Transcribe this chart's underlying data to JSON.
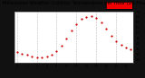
{
  "title": "Milwaukee Weather Outdoor Temperature per Hour (24 Hours)",
  "hours": [
    0,
    1,
    2,
    3,
    4,
    5,
    6,
    7,
    8,
    9,
    10,
    11,
    12,
    13,
    14,
    15,
    16,
    17,
    18,
    19,
    20,
    21,
    22,
    23
  ],
  "temps": [
    32,
    30,
    29,
    28,
    27,
    27,
    28,
    29,
    33,
    38,
    45,
    52,
    58,
    63,
    65,
    66,
    64,
    60,
    54,
    47,
    42,
    39,
    36,
    34
  ],
  "dot_color": "#cc0000",
  "bg_color": "#ffffff",
  "outer_bg": "#111111",
  "grid_color": "#aaaaaa",
  "title_color": "#000000",
  "highlight_color": "#ee0000",
  "ylim": [
    22,
    70
  ],
  "xlim": [
    -0.5,
    23.5
  ],
  "title_fontsize": 3.8,
  "tick_fontsize": 2.8,
  "dot_size": 2.5,
  "grid_hours": [
    0,
    4,
    8,
    12,
    16,
    20
  ],
  "yticks": [
    25,
    30,
    35,
    40,
    45,
    50,
    55,
    60,
    65,
    70
  ],
  "xtick_step": 2
}
